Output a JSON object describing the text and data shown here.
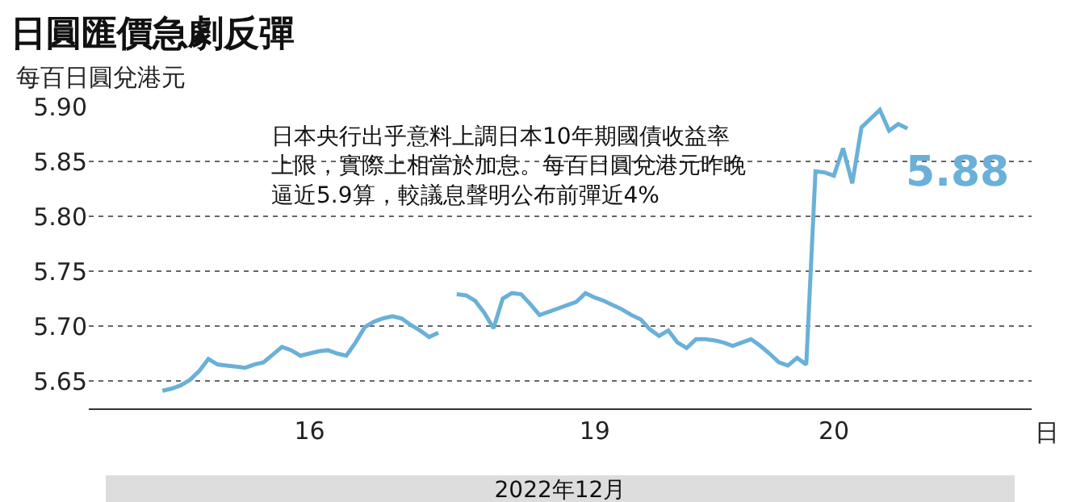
{
  "chart_data": {
    "type": "line",
    "title": "日圓匯價急劇反彈",
    "ylabel": "每百日圓兌港元",
    "annotations": [
      "日本央行出乎意料上調日本10年期國債收益率上限，實際上相當於加息。每百日圓兌港元昨晚逼近5.9算，較議息聲明公布前彈近4%",
      "5.88",
      "日",
      "2022年12月"
    ],
    "categories": [
      null,
      null,
      null,
      null,
      null,
      null,
      null,
      null,
      null,
      null,
      null,
      null,
      null,
      null,
      null,
      null,
      "16",
      null,
      null,
      null,
      null,
      null,
      null,
      null,
      null,
      null,
      null,
      null,
      null,
      null,
      null,
      null,
      null,
      null,
      null,
      null,
      null,
      null,
      null,
      null,
      null,
      null,
      null,
      null,
      null,
      null,
      null,
      "19",
      null,
      null,
      null,
      null,
      null,
      null,
      null,
      null,
      null,
      null,
      null,
      null,
      null,
      null,
      null,
      null,
      null,
      null,
      null,
      null,
      null,
      null,
      null,
      null,
      null,
      "20",
      null,
      null,
      null,
      null,
      null,
      null,
      null,
      null,
      null,
      null,
      null,
      null,
      null,
      null,
      null,
      null,
      null,
      null,
      null,
      null,
      null
    ],
    "series": [
      {
        "color": "#6ab0d8",
        "values": [
          5.641,
          5.643,
          5.646,
          5.651,
          5.659,
          5.67,
          5.665,
          5.664,
          5.663,
          5.662,
          5.665,
          5.667,
          5.674,
          5.681,
          5.678,
          5.673,
          5.675,
          5.677,
          5.678,
          5.675,
          5.673,
          5.685,
          5.699,
          5.704,
          5.707,
          5.709,
          5.707,
          5.701,
          5.696,
          5.69,
          5.694,
          null,
          5.729,
          5.728,
          5.723,
          5.712,
          5.698,
          5.725,
          5.73,
          5.729,
          5.72,
          5.71,
          5.713,
          5.716,
          5.719,
          5.722,
          5.73,
          5.726,
          5.723,
          5.719,
          5.715,
          5.71,
          5.706,
          5.697,
          5.691,
          5.696,
          5.685,
          5.68,
          5.688,
          5.688,
          5.687,
          5.685,
          5.682,
          5.685,
          5.688,
          5.682,
          5.675,
          5.667,
          5.664,
          5.671,
          5.665,
          5.841,
          5.84,
          5.837,
          5.862,
          5.83,
          5.881,
          5.889,
          5.897,
          5.878,
          5.884,
          5.88,
          null,
          null,
          null,
          null,
          null,
          null,
          null,
          null,
          null,
          null,
          null,
          null,
          null
        ]
      }
    ],
    "ylim": [
      5.625,
      5.9
    ],
    "yticks": [
      5.65,
      {
        "value": 5.7,
        "label": "5.70"
      },
      5.75,
      {
        "value": 5.8,
        "label": "5.80"
      },
      5.85,
      {
        "value": 5.9,
        "label": "5.90"
      }
    ],
    "grid": "y",
    "line_style": "solid",
    "marker": "none"
  }
}
